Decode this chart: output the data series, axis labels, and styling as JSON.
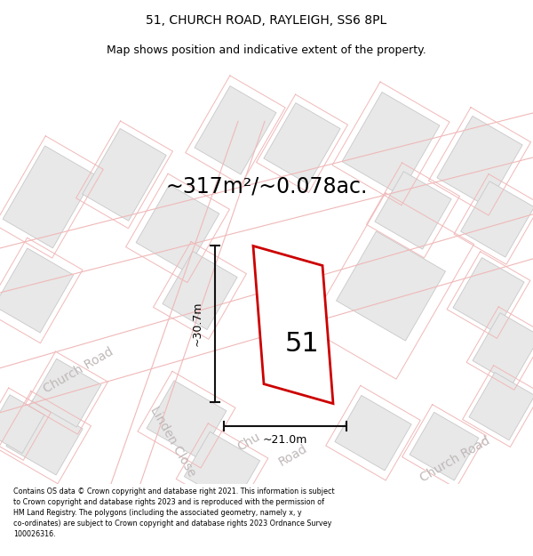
{
  "title_line1": "51, CHURCH ROAD, RAYLEIGH, SS6 8PL",
  "title_line2": "Map shows position and indicative extent of the property.",
  "area_label": "~317m²/~0.078ac.",
  "width_label": "~21.0m",
  "height_label": "~30.7m",
  "number_label": "51",
  "footer_text": "Contains OS data © Crown copyright and database right 2021. This information is subject\nto Crown copyright and database rights 2023 and is reproduced with the permission of\nHM Land Registry. The polygons (including the associated geometry, namely x, y\nco-ordinates) are subject to Crown copyright and database rights 2023 Ordnance Survey\n100026316.",
  "map_bg": "#ffffff",
  "property_color": "#cc0000",
  "road_label_color": "#c0b8b8",
  "building_fill": "#e8e8e8",
  "building_edge": "#c8c8c8",
  "cadastral_color": "#f0b8b8",
  "dim_line_color": "#111111",
  "title_fontsize": 10,
  "subtitle_fontsize": 9,
  "area_fontsize": 17,
  "number_fontsize": 22,
  "dim_fontsize": 9,
  "road_fontsize": 10
}
